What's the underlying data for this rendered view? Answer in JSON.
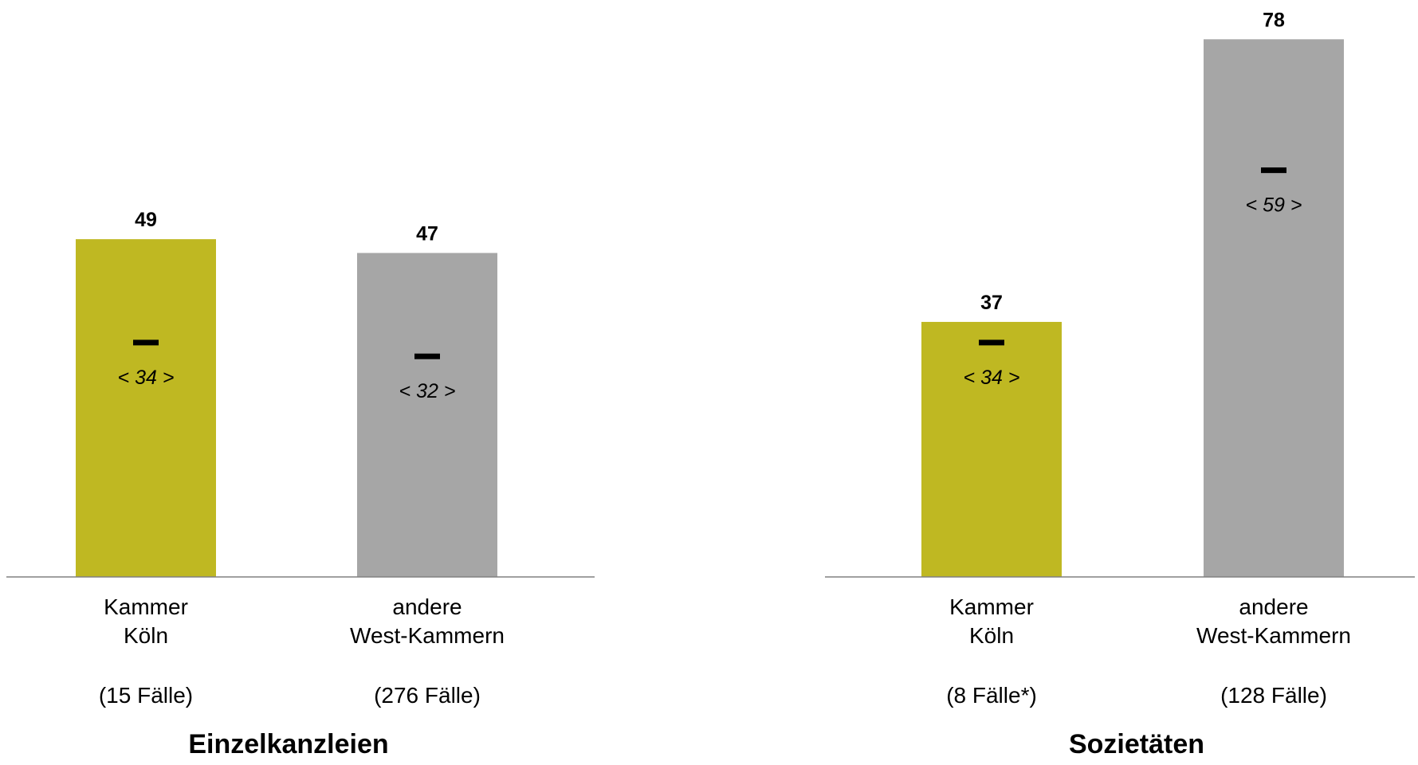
{
  "chart_data": [
    {
      "type": "bar",
      "title": "Einzelkanzleien",
      "categories": [
        {
          "label_lines": [
            "Kammer",
            "Köln"
          ],
          "cases": "(15 Fälle)"
        },
        {
          "label_lines": [
            "andere",
            "West-Kammern"
          ],
          "cases": "(276 Fälle)"
        }
      ],
      "values": [
        49,
        47
      ],
      "median_values": [
        34,
        32
      ],
      "median_labels": [
        "< 34 >",
        "< 32 >"
      ],
      "colors": [
        "#bfb822",
        "#a6a6a6"
      ],
      "ylim": [
        0,
        82
      ]
    },
    {
      "type": "bar",
      "title": "Sozietäten",
      "categories": [
        {
          "label_lines": [
            "Kammer",
            "Köln"
          ],
          "cases": "(8 Fälle*)"
        },
        {
          "label_lines": [
            "andere",
            "West-Kammern"
          ],
          "cases": "(128 Fälle)"
        }
      ],
      "values": [
        37,
        78
      ],
      "median_values": [
        34,
        59
      ],
      "median_labels": [
        "< 34 >",
        "< 59 >"
      ],
      "colors": [
        "#bfb822",
        "#a6a6a6"
      ],
      "ylim": [
        0,
        82
      ]
    }
  ]
}
